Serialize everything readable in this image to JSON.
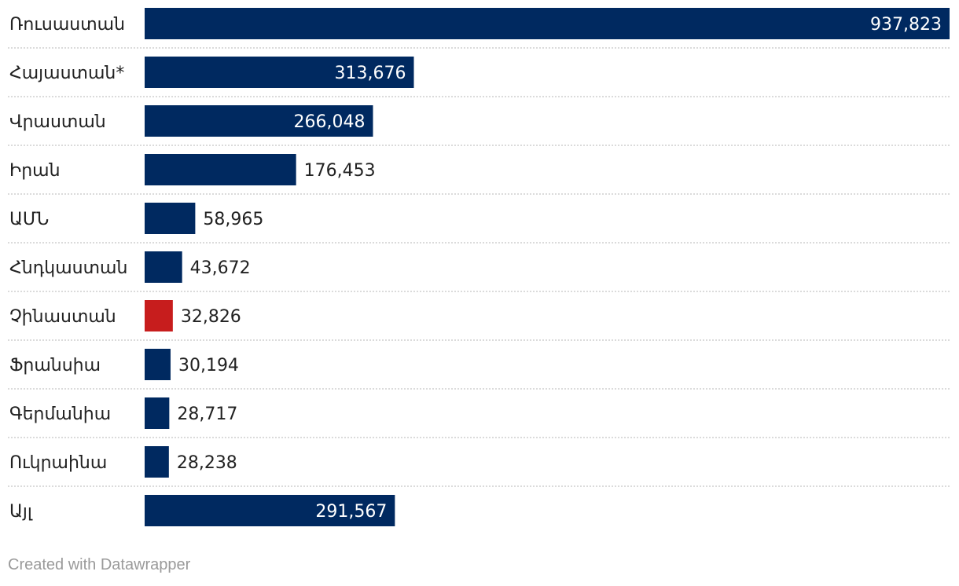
{
  "chart_data": {
    "type": "bar",
    "orientation": "horizontal",
    "categories": [
      "Ռուսաստան",
      "Հայաստան*",
      "Վրաստան",
      "Իրան",
      "ԱՄՆ",
      "Հնդկաստան",
      "Չինաստան",
      "Ֆրանսիա",
      "Գերմանիա",
      "Ուկրաինա",
      "Այլ"
    ],
    "values": [
      937823,
      313676,
      266048,
      176453,
      58965,
      43672,
      32826,
      30194,
      28717,
      28238,
      291567
    ],
    "value_labels": [
      "937,823",
      "313,676",
      "266,048",
      "176,453",
      "58,965",
      "43,672",
      "32,826",
      "30,194",
      "28,717",
      "28,238",
      "291,567"
    ],
    "bar_colors": [
      "#002960",
      "#002960",
      "#002960",
      "#002960",
      "#002960",
      "#002960",
      "#c71d1d",
      "#002960",
      "#002960",
      "#002960",
      "#002960"
    ],
    "xlim": [
      0,
      937823
    ],
    "grid": false,
    "legend": "none",
    "title": "",
    "xlabel": "",
    "ylabel": ""
  },
  "footer": {
    "credit": "Created with Datawrapper"
  }
}
